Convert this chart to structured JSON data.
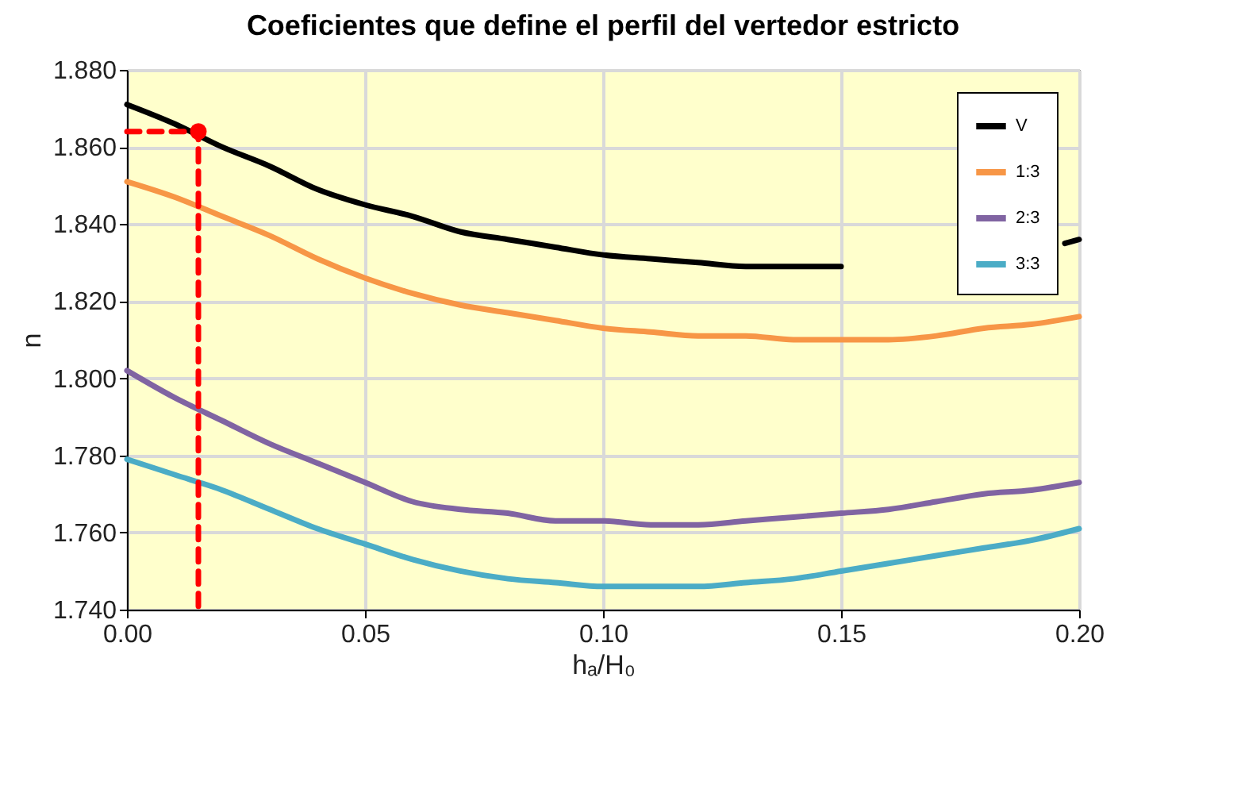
{
  "chart_data": {
    "type": "line",
    "title": "Coeficientes que define el perfil del vertedor estricto",
    "xlabel": "hₐ/H₀",
    "ylabel": "n",
    "x": [
      0,
      0.01,
      0.02,
      0.03,
      0.04,
      0.05,
      0.06,
      0.07,
      0.08,
      0.09,
      0.1,
      0.11,
      0.12,
      0.13,
      0.14,
      0.15,
      0.16,
      0.17,
      0.18,
      0.19,
      0.2
    ],
    "series": [
      {
        "name": "V",
        "color": "#000000",
        "x": [
          0,
          0.01,
          0.02,
          0.03,
          0.04,
          0.05,
          0.06,
          0.07,
          0.08,
          0.09,
          0.1,
          0.11,
          0.12,
          0.13,
          0.14,
          0.15,
          0.16,
          0.197,
          0.2
        ],
        "values": [
          1.871,
          1.866,
          1.86,
          1.855,
          1.849,
          1.845,
          1.842,
          1.838,
          1.836,
          1.834,
          1.832,
          1.831,
          1.83,
          1.829,
          1.829,
          1.829,
          null,
          1.835,
          1.836
        ]
      },
      {
        "name": "1:3",
        "color": "#f79646",
        "values": [
          1.851,
          1.847,
          1.842,
          1.837,
          1.831,
          1.826,
          1.822,
          1.819,
          1.817,
          1.815,
          1.813,
          1.812,
          1.811,
          1.811,
          1.81,
          1.81,
          1.81,
          1.811,
          1.813,
          1.814,
          1.816
        ]
      },
      {
        "name": "2:3",
        "color": "#8064a2",
        "values": [
          1.802,
          1.795,
          1.789,
          1.783,
          1.778,
          1.773,
          1.768,
          1.766,
          1.765,
          1.763,
          1.763,
          1.762,
          1.762,
          1.763,
          1.764,
          1.765,
          1.766,
          1.768,
          1.77,
          1.771,
          1.773
        ]
      },
      {
        "name": "3:3",
        "color": "#4bacc6",
        "values": [
          1.779,
          1.775,
          1.771,
          1.766,
          1.761,
          1.757,
          1.753,
          1.75,
          1.748,
          1.747,
          1.746,
          1.746,
          1.746,
          1.747,
          1.748,
          1.75,
          1.752,
          1.754,
          1.756,
          1.758,
          1.761
        ]
      },
      {
        "color": "#ff0000",
        "line_style": "dashed",
        "x": [
          0,
          0.015,
          0.015
        ],
        "values": [
          1.864,
          1.864,
          1.74
        ]
      },
      {
        "type": "scatter",
        "color": "#ff0000",
        "marker": "circle",
        "x": [
          0.015
        ],
        "values": [
          1.864
        ]
      }
    ],
    "xlim": [
      0,
      0.2
    ],
    "xticks": [
      {
        "value": 0,
        "label": "0.00"
      },
      {
        "value": 0.05,
        "label": "0.05"
      },
      {
        "value": 0.1,
        "label": "0.10"
      },
      {
        "value": 0.15,
        "label": "0.15"
      },
      {
        "value": 0.2,
        "label": "0.20"
      }
    ],
    "ylim": [
      1.74,
      1.88
    ],
    "yticks": [
      {
        "value": 1.74,
        "label": "1.740"
      },
      {
        "value": 1.76,
        "label": "1.760"
      },
      {
        "value": 1.78,
        "label": "1.780"
      },
      {
        "value": 1.8,
        "label": "1.800"
      },
      {
        "value": 1.82,
        "label": "1.820"
      },
      {
        "value": 1.84,
        "label": "1.840"
      },
      {
        "value": 1.86,
        "label": "1.860"
      },
      {
        "value": 1.88,
        "label": "1.880"
      }
    ],
    "grid": true,
    "legend": "top right"
  }
}
